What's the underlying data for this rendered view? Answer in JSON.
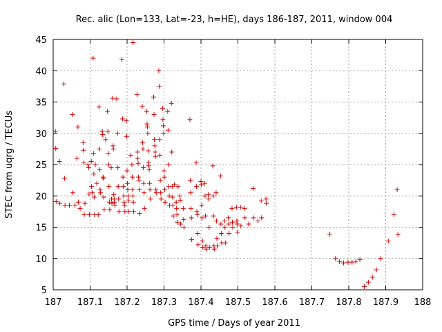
{
  "chart_data": {
    "type": "scatter",
    "title": "Rec. alic (Lon=133, Lat=-23, h=HE), days 186-187, 2011, window 004",
    "xlabel": "GPS time / Days of year 2011",
    "ylabel": "STEC from uqrg / TECUs",
    "xlim": [
      187,
      188
    ],
    "ylim": [
      5,
      45
    ],
    "xticks": [
      "187",
      "187.1",
      "187.2",
      "187.3",
      "187.4",
      "187.5",
      "187.6",
      "187.7",
      "187.8",
      "187.9",
      "188"
    ],
    "yticks": [
      "5",
      "10",
      "15",
      "20",
      "25",
      "30",
      "35",
      "40",
      "45"
    ],
    "grid": true,
    "marker": "+",
    "color": "#cc0000",
    "points": [
      [
        187.006,
        30.3
      ],
      [
        187.007,
        27.6
      ],
      [
        187.008,
        19.1
      ],
      [
        187.017,
        25.5
      ],
      [
        187.018,
        18.8
      ],
      [
        187.029,
        37.9
      ],
      [
        187.031,
        22.8
      ],
      [
        187.032,
        18.5
      ],
      [
        187.044,
        18.5
      ],
      [
        187.052,
        33.0
      ],
      [
        187.053,
        20.5
      ],
      [
        187.059,
        18.5
      ],
      [
        187.064,
        26.0
      ],
      [
        187.067,
        31.0
      ],
      [
        187.068,
        19.0
      ],
      [
        187.073,
        18.0
      ],
      [
        187.081,
        28.5
      ],
      [
        187.082,
        27.3
      ],
      [
        187.083,
        25.3
      ],
      [
        187.084,
        17.0
      ],
      [
        187.086,
        18.8
      ],
      [
        187.094,
        25.0
      ],
      [
        187.096,
        24.5
      ],
      [
        187.097,
        20.3
      ],
      [
        187.098,
        17.0
      ],
      [
        187.103,
        25.5
      ],
      [
        187.104,
        21.5
      ],
      [
        187.106,
        20.5
      ],
      [
        187.108,
        42.0
      ],
      [
        187.109,
        26.8
      ],
      [
        187.11,
        23.5
      ],
      [
        187.111,
        19.8
      ],
      [
        187.112,
        17.0
      ],
      [
        187.114,
        25.0
      ],
      [
        187.118,
        22.0
      ],
      [
        187.122,
        17.0
      ],
      [
        187.124,
        34.2
      ],
      [
        187.125,
        27.5
      ],
      [
        187.126,
        24.2
      ],
      [
        187.127,
        21.0
      ],
      [
        187.128,
        20.5
      ],
      [
        187.133,
        30.3
      ],
      [
        187.134,
        29.8
      ],
      [
        187.135,
        23.0
      ],
      [
        187.136,
        22.8
      ],
      [
        187.137,
        19.8
      ],
      [
        187.138,
        17.8
      ],
      [
        187.142,
        29.0
      ],
      [
        187.147,
        33.5
      ],
      [
        187.148,
        30.3
      ],
      [
        187.149,
        26.8
      ],
      [
        187.15,
        25.0
      ],
      [
        187.151,
        21.5
      ],
      [
        187.152,
        19.0
      ],
      [
        187.153,
        17.8
      ],
      [
        187.157,
        24.5
      ],
      [
        187.158,
        19.5
      ],
      [
        187.159,
        18.8
      ],
      [
        187.161,
        35.6
      ],
      [
        187.162,
        28.0
      ],
      [
        187.163,
        27.5
      ],
      [
        187.164,
        20.2
      ],
      [
        187.165,
        19.5
      ],
      [
        187.166,
        19.0
      ],
      [
        187.167,
        18.5
      ],
      [
        187.172,
        35.5
      ],
      [
        187.174,
        30.0
      ],
      [
        187.175,
        24.5
      ],
      [
        187.176,
        21.5
      ],
      [
        187.177,
        19.5
      ],
      [
        187.178,
        17.5
      ],
      [
        187.186,
        41.8
      ],
      [
        187.188,
        32.3
      ],
      [
        187.189,
        23.0
      ],
      [
        187.19,
        21.5
      ],
      [
        187.191,
        20.0
      ],
      [
        187.192,
        19.0
      ],
      [
        187.193,
        18.5
      ],
      [
        187.194,
        17.5
      ],
      [
        187.198,
        32.0
      ],
      [
        187.199,
        29.5
      ],
      [
        187.2,
        24.0
      ],
      [
        187.201,
        22.0
      ],
      [
        187.202,
        21.0
      ],
      [
        187.203,
        20.0
      ],
      [
        187.204,
        19.2
      ],
      [
        187.205,
        17.5
      ],
      [
        187.21,
        26.5
      ],
      [
        187.213,
        25.0
      ],
      [
        187.214,
        23.0
      ],
      [
        187.215,
        21.0
      ],
      [
        187.216,
        20.0
      ],
      [
        187.217,
        19.0
      ],
      [
        187.218,
        17.5
      ],
      [
        187.216,
        44.5
      ],
      [
        187.227,
        36.2
      ],
      [
        187.228,
        27.0
      ],
      [
        187.229,
        26.0
      ],
      [
        187.23,
        25.2
      ],
      [
        187.231,
        23.0
      ],
      [
        187.232,
        22.5
      ],
      [
        187.233,
        21.0
      ],
      [
        187.234,
        17.2
      ],
      [
        187.241,
        34.3
      ],
      [
        187.242,
        28.5
      ],
      [
        187.243,
        27.5
      ],
      [
        187.244,
        24.5
      ],
      [
        187.245,
        22.0
      ],
      [
        187.246,
        20.5
      ],
      [
        187.247,
        18.0
      ],
      [
        187.253,
        33.5
      ],
      [
        187.254,
        31.5
      ],
      [
        187.255,
        31.0
      ],
      [
        187.256,
        30.0
      ],
      [
        187.257,
        27.2
      ],
      [
        187.258,
        25.3
      ],
      [
        187.259,
        24.8
      ],
      [
        187.26,
        24.2
      ],
      [
        187.261,
        22.0
      ],
      [
        187.262,
        21.0
      ],
      [
        187.263,
        19.5
      ],
      [
        187.272,
        35.8
      ],
      [
        187.273,
        33.0
      ],
      [
        187.274,
        29.0
      ],
      [
        187.275,
        28.0
      ],
      [
        187.276,
        27.0
      ],
      [
        187.277,
        26.3
      ],
      [
        187.278,
        21.0
      ],
      [
        187.279,
        20.5
      ],
      [
        187.286,
        40.0
      ],
      [
        187.287,
        37.5
      ],
      [
        187.288,
        29.0
      ],
      [
        187.289,
        26.5
      ],
      [
        187.29,
        22.5
      ],
      [
        187.291,
        20.5
      ],
      [
        187.292,
        19.5
      ],
      [
        187.296,
        34.0
      ],
      [
        187.297,
        32.2
      ],
      [
        187.298,
        31.2
      ],
      [
        187.299,
        30.0
      ],
      [
        187.3,
        24.0
      ],
      [
        187.301,
        23.0
      ],
      [
        187.302,
        21.0
      ],
      [
        187.303,
        19.0
      ],
      [
        187.31,
        33.5
      ],
      [
        187.311,
        30.5
      ],
      [
        187.312,
        25.0
      ],
      [
        187.313,
        21.5
      ],
      [
        187.314,
        20.0
      ],
      [
        187.315,
        18.5
      ],
      [
        187.32,
        34.8
      ],
      [
        187.321,
        27.0
      ],
      [
        187.322,
        21.5
      ],
      [
        187.323,
        19.8
      ],
      [
        187.324,
        18.5
      ],
      [
        187.325,
        16.8
      ],
      [
        187.328,
        21.8
      ],
      [
        187.333,
        19.0
      ],
      [
        187.334,
        18.0
      ],
      [
        187.335,
        17.0
      ],
      [
        187.336,
        15.8
      ],
      [
        187.338,
        21.5
      ],
      [
        187.343,
        20.0
      ],
      [
        187.344,
        19.3
      ],
      [
        187.345,
        15.5
      ],
      [
        187.352,
        18.0
      ],
      [
        187.353,
        16.2
      ],
      [
        187.354,
        15.0
      ],
      [
        187.37,
        32.2
      ],
      [
        187.371,
        22.5
      ],
      [
        187.372,
        20.5
      ],
      [
        187.373,
        18.0
      ],
      [
        187.374,
        16.5
      ],
      [
        187.375,
        13.0
      ],
      [
        187.387,
        25.3
      ],
      [
        187.388,
        21.5
      ],
      [
        187.389,
        17.5
      ],
      [
        187.39,
        17.0
      ],
      [
        187.391,
        14.0
      ],
      [
        187.392,
        12.2
      ],
      [
        187.4,
        22.3
      ],
      [
        187.401,
        21.8
      ],
      [
        187.402,
        18.5
      ],
      [
        187.403,
        16.5
      ],
      [
        187.404,
        12.8
      ],
      [
        187.405,
        11.8
      ],
      [
        187.41,
        22.0
      ],
      [
        187.411,
        20.0
      ],
      [
        187.412,
        16.8
      ],
      [
        187.413,
        12.0
      ],
      [
        187.414,
        11.5
      ],
      [
        187.42,
        20.2
      ],
      [
        187.421,
        19.5
      ],
      [
        187.422,
        15.0
      ],
      [
        187.423,
        11.8
      ],
      [
        187.432,
        24.8
      ],
      [
        187.433,
        20.0
      ],
      [
        187.434,
        16.8
      ],
      [
        187.435,
        12.0
      ],
      [
        187.436,
        11.5
      ],
      [
        187.441,
        20.5
      ],
      [
        187.442,
        16.0
      ],
      [
        187.443,
        13.2
      ],
      [
        187.444,
        12.0
      ],
      [
        187.453,
        23.2
      ],
      [
        187.454,
        15.5
      ],
      [
        187.455,
        14.0
      ],
      [
        187.456,
        12.5
      ],
      [
        187.464,
        16.0
      ],
      [
        187.465,
        15.0
      ],
      [
        187.466,
        12.5
      ],
      [
        187.474,
        16.5
      ],
      [
        187.475,
        15.5
      ],
      [
        187.476,
        14.0
      ],
      [
        187.484,
        18.0
      ],
      [
        187.485,
        15.8
      ],
      [
        187.486,
        15.0
      ],
      [
        187.496,
        18.2
      ],
      [
        187.497,
        16.0
      ],
      [
        187.498,
        15.5
      ],
      [
        187.499,
        14.2
      ],
      [
        187.507,
        18.2
      ],
      [
        187.508,
        15.2
      ],
      [
        187.518,
        18.0
      ],
      [
        187.519,
        16.5
      ],
      [
        187.529,
        15.5
      ],
      [
        187.541,
        21.2
      ],
      [
        187.542,
        16.5
      ],
      [
        187.554,
        16.0
      ],
      [
        187.563,
        19.2
      ],
      [
        187.564,
        16.5
      ],
      [
        187.576,
        19.5
      ],
      [
        187.577,
        18.8
      ],
      [
        187.748,
        13.9
      ],
      [
        187.764,
        10.0
      ],
      [
        187.775,
        9.5
      ],
      [
        187.786,
        9.3
      ],
      [
        187.798,
        9.4
      ],
      [
        187.809,
        9.4
      ],
      [
        187.819,
        9.5
      ],
      [
        187.83,
        9.8
      ],
      [
        187.842,
        5.5
      ],
      [
        187.853,
        6.2
      ],
      [
        187.864,
        7.0
      ],
      [
        187.875,
        8.2
      ],
      [
        187.886,
        10.0
      ],
      [
        187.907,
        12.8
      ],
      [
        187.922,
        17.0
      ],
      [
        187.931,
        21.0
      ],
      [
        187.933,
        13.8
      ]
    ]
  }
}
